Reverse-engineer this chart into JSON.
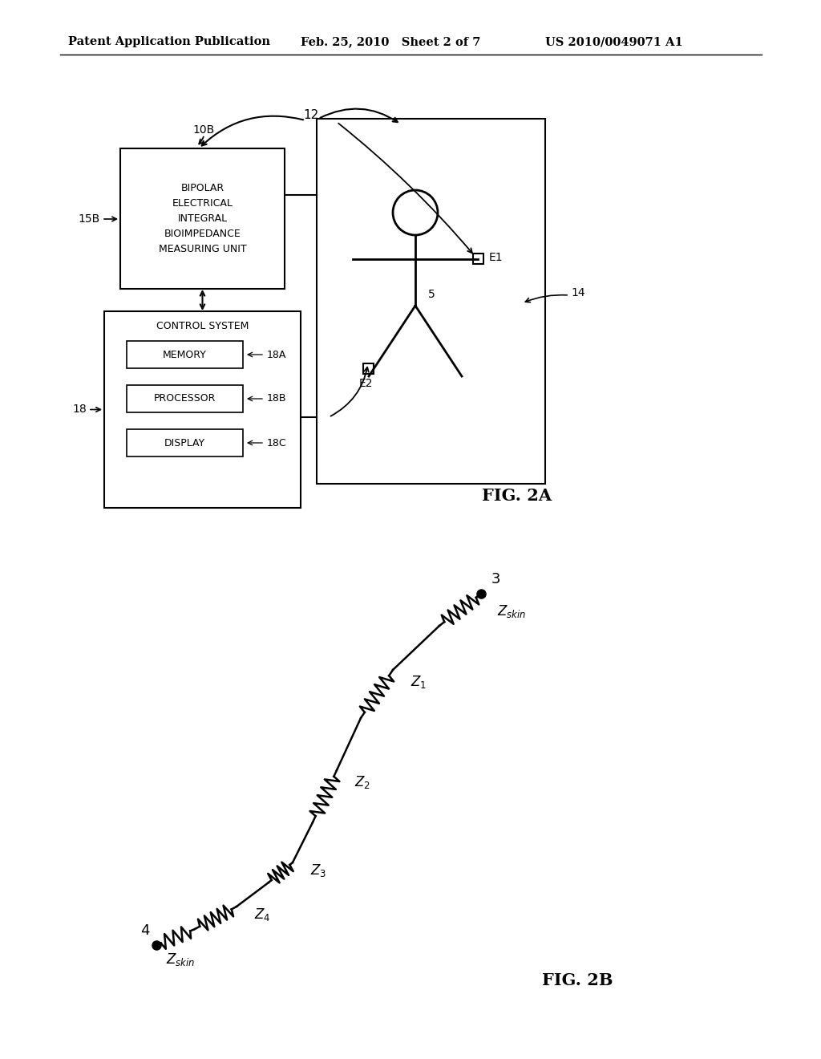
{
  "bg_color": "#ffffff",
  "header_left": "Patent Application Publication",
  "header_mid": "Feb. 25, 2010   Sheet 2 of 7",
  "header_right": "US 2010/0049071 A1",
  "fig2a_label": "FIG. 2A",
  "fig2b_label": "FIG. 2B",
  "bipolar_box_text": "BIPOLAR\nELECTRICAL\nINTEGRAL\nBIOIMPEDANCE\nMEASURING UNIT",
  "control_box_text": "CONTROL SYSTEM",
  "memory_text": "MEMORY",
  "processor_text": "PROCESSOR",
  "display_text": "DISPLAY",
  "label_10B": "10B",
  "label_12": "12",
  "label_15B": "15B",
  "label_18": "18",
  "label_18A": "18A",
  "label_18B": "18B",
  "label_18C": "18C",
  "label_5": "5",
  "label_14": "14",
  "label_E1": "E1",
  "label_E2": "E2",
  "label_3": "3",
  "label_4": "4"
}
